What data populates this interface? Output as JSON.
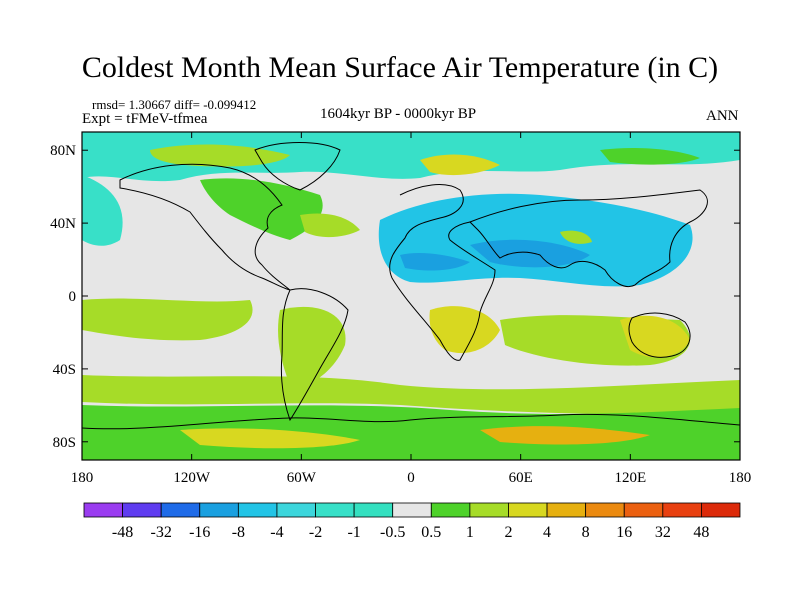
{
  "header": {
    "title": "Coldest Month Mean Surface Air Temperature (in C)",
    "stats": "rmsd= 1.30667 diff= -0.099412",
    "experiment": "Expt = tFMeV-tfmea",
    "period": "1604kyr BP - 0000kyr BP",
    "season": "ANN"
  },
  "map_data": {
    "projection": "cylindrical equidistant",
    "lon_range": [
      -180,
      180
    ],
    "lat_range": [
      -90,
      90
    ],
    "lat_ticks": [
      {
        "value": 80,
        "label": "80N"
      },
      {
        "value": 40,
        "label": "40N"
      },
      {
        "value": 0,
        "label": "0"
      },
      {
        "value": -40,
        "label": "40S"
      },
      {
        "value": -80,
        "label": "80S"
      }
    ],
    "lon_ticks": [
      {
        "value": -180,
        "label": "180"
      },
      {
        "value": -120,
        "label": "120W"
      },
      {
        "value": -60,
        "label": "60W"
      },
      {
        "value": 0,
        "label": "0"
      },
      {
        "value": 60,
        "label": "60E"
      },
      {
        "value": 120,
        "label": "120E"
      },
      {
        "value": 180,
        "label": "180"
      }
    ]
  },
  "colorbar": {
    "boundaries": [
      "-48",
      "-32",
      "-16",
      "-8",
      "-4",
      "-2",
      "-1",
      "-0.5",
      "0.5",
      "1",
      "2",
      "4",
      "8",
      "16",
      "32",
      "48"
    ],
    "colors": [
      "#9a3cf0",
      "#5f3cf0",
      "#1f6be8",
      "#1aa0e0",
      "#22c4e6",
      "#3cd6dc",
      "#38e0c8",
      "#34e0c0",
      "#e6e6e6",
      "#4ed22a",
      "#a6dc28",
      "#d8d820",
      "#e6b010",
      "#eb8a10",
      "#eb6010",
      "#e84010",
      "#dc2a0a"
    ]
  }
}
